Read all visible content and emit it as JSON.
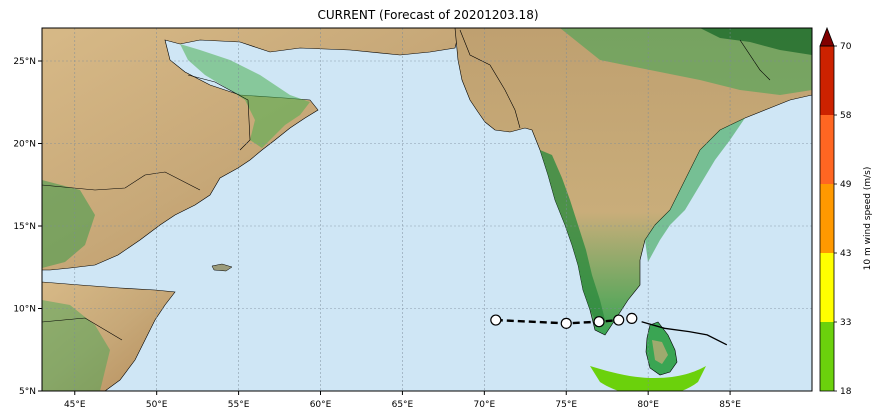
{
  "title": "CURRENT (Forecast of 20201203.18)",
  "map": {
    "lon_range": [
      43,
      90
    ],
    "lat_range": [
      5,
      27
    ],
    "lon_ticks": [
      "45°E",
      "50°E",
      "55°E",
      "60°E",
      "65°E",
      "70°E",
      "75°E",
      "80°E",
      "85°E"
    ],
    "lon_tick_values": [
      45,
      50,
      55,
      60,
      65,
      70,
      75,
      80,
      85
    ],
    "lat_ticks": [
      "25°N",
      "20°N",
      "15°N",
      "10°N",
      "5°N"
    ],
    "lat_tick_values": [
      25,
      20,
      15,
      10,
      5
    ],
    "colors": {
      "ocean": "#cfe6f5",
      "land_low": "#2f9e44",
      "land_mid": "#c8b27a",
      "land_high": "#8a5a2b"
    }
  },
  "track": {
    "forecast_points": [
      {
        "lon": 70.7,
        "lat": 9.3
      },
      {
        "lon": 75.0,
        "lat": 9.1
      },
      {
        "lon": 77.0,
        "lat": 9.2
      },
      {
        "lon": 78.2,
        "lat": 9.3
      },
      {
        "lon": 79.0,
        "lat": 9.4
      }
    ],
    "past_track": [
      {
        "lon": 79.6,
        "lat": 9.2
      },
      {
        "lon": 81.0,
        "lat": 8.8
      },
      {
        "lon": 82.5,
        "lat": 8.6
      },
      {
        "lon": 83.6,
        "lat": 8.4
      },
      {
        "lon": 84.8,
        "lat": 7.8
      }
    ]
  },
  "colorbar": {
    "label": "10 m wind speed (m/s)",
    "ticks": [
      "18",
      "33",
      "43",
      "49",
      "58",
      "70"
    ],
    "colors": [
      "#6bd10c",
      "#ffff00",
      "#ff9900",
      "#ff6622",
      "#cc2200",
      "#800000"
    ]
  }
}
